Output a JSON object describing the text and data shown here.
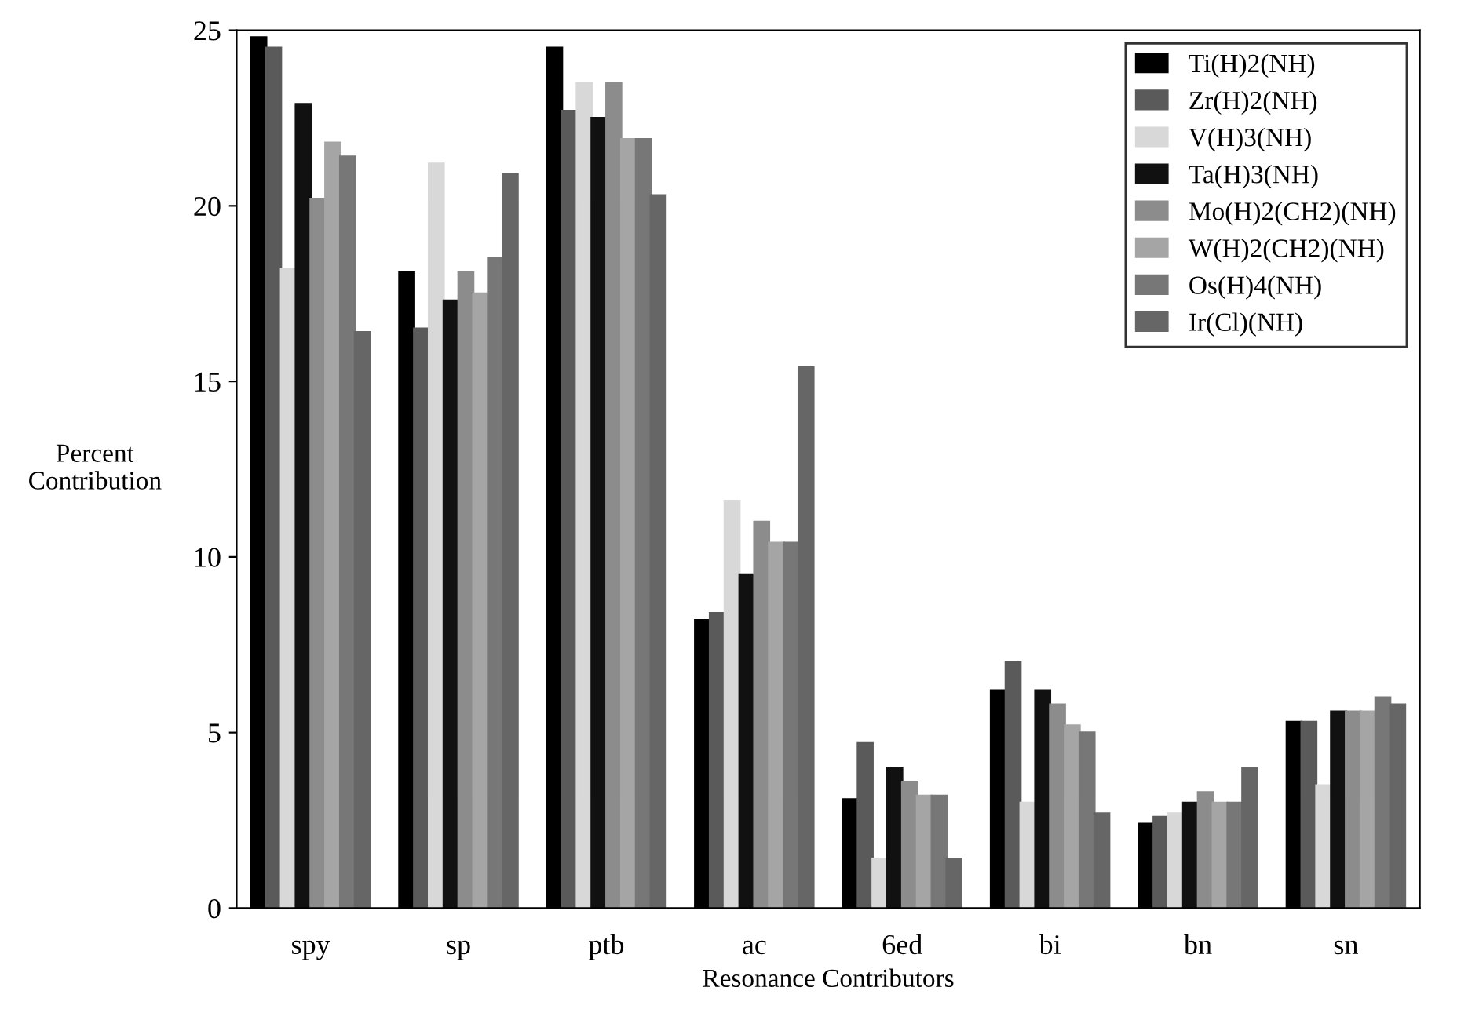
{
  "chart_data": {
    "type": "bar",
    "xlabel": "Resonance Contributors",
    "ylabel": "Percent\nContribution",
    "categories": [
      "spy",
      "sp",
      "ptb",
      "ac",
      "6ed",
      "bi",
      "bn",
      "sn"
    ],
    "ylim": [
      0,
      25
    ],
    "yticks": [
      0,
      5,
      10,
      15,
      20,
      25
    ],
    "grid": false,
    "legend": "top right",
    "series": [
      {
        "name": "Ti(H)2(NH)",
        "color": "#000000",
        "values": [
          24.8,
          18.1,
          24.5,
          8.2,
          3.1,
          6.2,
          2.4,
          5.3
        ]
      },
      {
        "name": "Zr(H)2(NH)",
        "color": "#5a5a5a",
        "values": [
          24.5,
          16.5,
          22.7,
          8.4,
          4.7,
          7.0,
          2.6,
          5.3
        ]
      },
      {
        "name": "V(H)3(NH)",
        "color": "#d8d8d8",
        "values": [
          18.2,
          21.2,
          23.5,
          11.6,
          1.4,
          3.0,
          2.7,
          3.5
        ]
      },
      {
        "name": "Ta(H)3(NH)",
        "color": "#111111",
        "values": [
          22.9,
          17.3,
          22.5,
          9.5,
          4.0,
          6.2,
          3.0,
          5.6
        ]
      },
      {
        "name": "Mo(H)2(CH2)(NH)",
        "color": "#8c8c8c",
        "values": [
          20.2,
          18.1,
          23.5,
          11.0,
          3.6,
          5.8,
          3.3,
          5.6
        ]
      },
      {
        "name": "W(H)2(CH2)(NH)",
        "color": "#a5a5a5",
        "values": [
          21.8,
          17.5,
          21.9,
          10.4,
          3.2,
          5.2,
          3.0,
          5.6
        ]
      },
      {
        "name": "Os(H)4(NH)",
        "color": "#777777",
        "values": [
          21.4,
          18.5,
          21.9,
          10.4,
          3.2,
          5.0,
          3.0,
          6.0
        ]
      },
      {
        "name": "Ir(Cl)(NH)",
        "color": "#666666",
        "values": [
          16.4,
          20.9,
          20.3,
          15.4,
          1.4,
          2.7,
          4.0,
          5.8
        ]
      }
    ]
  }
}
